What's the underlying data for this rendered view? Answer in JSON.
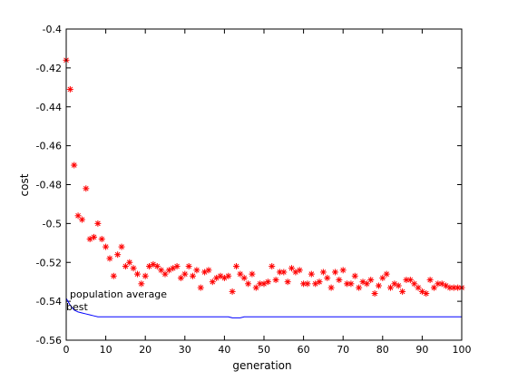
{
  "chart_data": {
    "type": "scatter",
    "xlabel": "generation",
    "ylabel": "cost",
    "xlim": [
      0,
      100
    ],
    "ylim": [
      -0.56,
      -0.4
    ],
    "x_ticks": [
      0,
      10,
      20,
      30,
      40,
      50,
      60,
      70,
      80,
      90,
      100
    ],
    "x_tick_labels": [
      "0",
      "10",
      "20",
      "30",
      "40",
      "50",
      "60",
      "70",
      "80",
      "90",
      "100"
    ],
    "y_ticks": [
      -0.4,
      -0.42,
      -0.44,
      -0.46,
      -0.48,
      -0.5,
      -0.52,
      -0.54,
      -0.56
    ],
    "y_tick_labels": [
      "-0.4",
      "-0.42",
      "-0.44",
      "-0.46",
      "-0.48",
      "-0.5",
      "-0.52",
      "-0.54",
      "-0.56"
    ],
    "grid": false,
    "legend": "none",
    "annotations": [
      "population average",
      "best"
    ],
    "series": [
      {
        "marker": "asterisk",
        "color": "#ff0000",
        "x": [
          0,
          1,
          2,
          3,
          4,
          5,
          6,
          7,
          8,
          9,
          10,
          11,
          12,
          13,
          14,
          15,
          16,
          17,
          18,
          19,
          20,
          21,
          22,
          23,
          24,
          25,
          26,
          27,
          28,
          29,
          30,
          31,
          32,
          33,
          34,
          35,
          36,
          37,
          38,
          39,
          40,
          41,
          42,
          43,
          44,
          45,
          46,
          47,
          48,
          49,
          50,
          51,
          52,
          53,
          54,
          55,
          56,
          57,
          58,
          59,
          60,
          61,
          62,
          63,
          64,
          65,
          66,
          67,
          68,
          69,
          70,
          71,
          72,
          73,
          74,
          75,
          76,
          77,
          78,
          79,
          80,
          81,
          82,
          83,
          84,
          85,
          86,
          87,
          88,
          89,
          90,
          91,
          92,
          93,
          94,
          95,
          96,
          97,
          98,
          99,
          100
        ],
        "y": [
          -0.416,
          -0.431,
          -0.47,
          -0.496,
          -0.498,
          -0.482,
          -0.508,
          -0.507,
          -0.5,
          -0.508,
          -0.512,
          -0.518,
          -0.527,
          -0.516,
          -0.512,
          -0.522,
          -0.52,
          -0.523,
          -0.526,
          -0.531,
          -0.527,
          -0.522,
          -0.521,
          -0.522,
          -0.524,
          -0.526,
          -0.524,
          -0.523,
          -0.522,
          -0.528,
          -0.526,
          -0.522,
          -0.527,
          -0.524,
          -0.533,
          -0.525,
          -0.524,
          -0.53,
          -0.528,
          -0.527,
          -0.528,
          -0.527,
          -0.535,
          -0.522,
          -0.526,
          -0.528,
          -0.531,
          -0.526,
          -0.533,
          -0.531,
          -0.531,
          -0.53,
          -0.522,
          -0.529,
          -0.525,
          -0.525,
          -0.53,
          -0.523,
          -0.525,
          -0.524,
          -0.531,
          -0.531,
          -0.526,
          -0.531,
          -0.53,
          -0.525,
          -0.528,
          -0.533,
          -0.525,
          -0.529,
          -0.524,
          -0.531,
          -0.531,
          -0.527,
          -0.533,
          -0.53,
          -0.531,
          -0.529,
          -0.536,
          -0.532,
          -0.528,
          -0.526,
          -0.533,
          -0.531,
          -0.532,
          -0.535,
          -0.529,
          -0.529,
          -0.531,
          -0.533,
          -0.535,
          -0.536,
          -0.529,
          -0.533,
          -0.531,
          -0.531,
          -0.532,
          -0.533,
          -0.533,
          -0.533,
          -0.533
        ]
      },
      {
        "marker": "line",
        "color": "#0000ff",
        "x": [
          0,
          1,
          2,
          3,
          4,
          5,
          6,
          7,
          8,
          9,
          10,
          11,
          12,
          13,
          14,
          15,
          16,
          17,
          18,
          19,
          20,
          21,
          22,
          23,
          24,
          25,
          26,
          27,
          28,
          29,
          30,
          31,
          32,
          33,
          34,
          35,
          36,
          37,
          38,
          39,
          40,
          41,
          42,
          43,
          44,
          45,
          46,
          47,
          48,
          49,
          50,
          51,
          52,
          53,
          54,
          55,
          56,
          57,
          58,
          59,
          60,
          61,
          62,
          63,
          64,
          65,
          66,
          67,
          68,
          69,
          70,
          71,
          72,
          73,
          74,
          75,
          76,
          77,
          78,
          79,
          80,
          81,
          82,
          83,
          84,
          85,
          86,
          87,
          88,
          89,
          90,
          91,
          92,
          93,
          94,
          95,
          96,
          97,
          98,
          99,
          100
        ],
        "y": [
          -0.5385,
          -0.542,
          -0.5445,
          -0.5455,
          -0.546,
          -0.5465,
          -0.547,
          -0.5475,
          -0.548,
          -0.548,
          -0.548,
          -0.548,
          -0.548,
          -0.548,
          -0.548,
          -0.548,
          -0.548,
          -0.548,
          -0.548,
          -0.548,
          -0.548,
          -0.548,
          -0.548,
          -0.548,
          -0.548,
          -0.548,
          -0.548,
          -0.548,
          -0.548,
          -0.548,
          -0.548,
          -0.548,
          -0.548,
          -0.548,
          -0.548,
          -0.548,
          -0.548,
          -0.548,
          -0.548,
          -0.548,
          -0.548,
          -0.548,
          -0.5485,
          -0.5485,
          -0.5485,
          -0.548,
          -0.548,
          -0.548,
          -0.548,
          -0.548,
          -0.548,
          -0.548,
          -0.548,
          -0.548,
          -0.548,
          -0.548,
          -0.548,
          -0.548,
          -0.548,
          -0.548,
          -0.548,
          -0.548,
          -0.548,
          -0.548,
          -0.548,
          -0.548,
          -0.548,
          -0.548,
          -0.548,
          -0.548,
          -0.548,
          -0.548,
          -0.548,
          -0.548,
          -0.548,
          -0.548,
          -0.548,
          -0.548,
          -0.548,
          -0.548,
          -0.548,
          -0.548,
          -0.548,
          -0.548,
          -0.548,
          -0.548,
          -0.548,
          -0.548,
          -0.548,
          -0.548,
          -0.548,
          -0.548,
          -0.548,
          -0.548,
          -0.548,
          -0.548,
          -0.548,
          -0.548,
          -0.548,
          -0.548,
          -0.548
        ]
      }
    ]
  }
}
